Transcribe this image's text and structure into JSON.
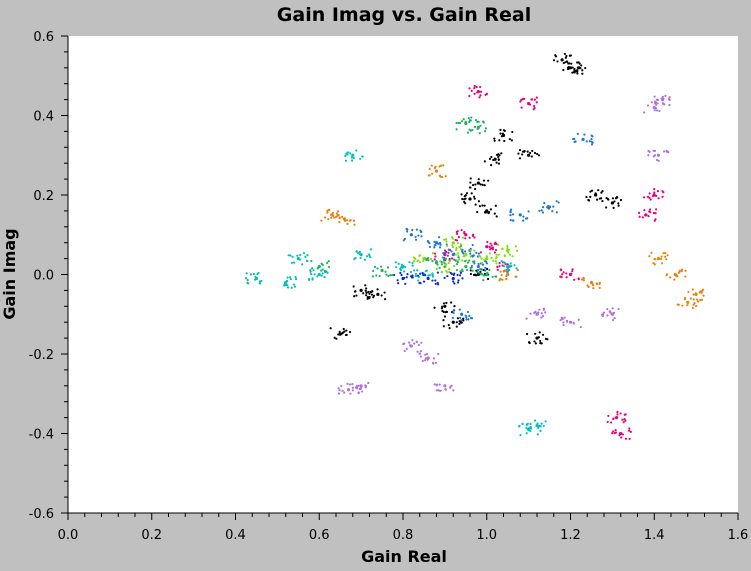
{
  "chart_data": {
    "type": "scatter",
    "title": "Gain Imag vs. Gain Real",
    "xlabel": "Gain Real",
    "ylabel": "Gain Imag",
    "xlim": [
      0.0,
      1.6
    ],
    "ylim": [
      -0.6,
      0.6
    ],
    "xticks": [
      "0.0",
      "0.2",
      "0.4",
      "0.6",
      "0.8",
      "1.0",
      "1.2",
      "1.4",
      "1.6"
    ],
    "yticks": [
      "0.6",
      "0.4",
      "0.2",
      "0.0",
      "-0.2",
      "-0.4",
      "-0.6"
    ],
    "grid": false,
    "legend": "none",
    "colors": [
      "#000000",
      "#e6007e",
      "#00bfbf",
      "#1e78d2",
      "#e8820c",
      "#7fe000",
      "#b070e0",
      "#20b060",
      "#0a2ad0"
    ],
    "series": [
      {
        "color": "#000000",
        "points": [
          [
            1.18,
            0.54
          ],
          [
            1.2,
            0.52
          ],
          [
            1.22,
            0.52
          ],
          [
            1.1,
            0.3
          ],
          [
            1.02,
            0.29
          ],
          [
            0.98,
            0.23
          ],
          [
            0.96,
            0.19
          ],
          [
            1.0,
            0.16
          ],
          [
            1.3,
            0.18
          ],
          [
            1.26,
            0.2
          ],
          [
            0.65,
            -0.15
          ],
          [
            0.92,
            -0.12
          ],
          [
            1.12,
            -0.16
          ],
          [
            0.74,
            -0.05
          ],
          [
            1.04,
            0.35
          ],
          [
            0.98,
            0.0
          ],
          [
            0.7,
            -0.04
          ],
          [
            0.9,
            -0.08
          ]
        ]
      },
      {
        "color": "#e6007e",
        "points": [
          [
            0.98,
            0.46
          ],
          [
            1.1,
            0.43
          ],
          [
            1.4,
            0.2
          ],
          [
            1.38,
            0.15
          ],
          [
            1.32,
            -0.4
          ],
          [
            1.31,
            -0.36
          ],
          [
            1.0,
            0.07
          ],
          [
            1.05,
            0.02
          ],
          [
            1.2,
            0.0
          ],
          [
            0.9,
            0.05
          ],
          [
            0.95,
            0.1
          ]
        ]
      },
      {
        "color": "#00bfbf",
        "points": [
          [
            0.68,
            0.3
          ],
          [
            0.55,
            0.04
          ],
          [
            0.6,
            0.0
          ],
          [
            0.52,
            -0.02
          ],
          [
            1.1,
            -0.39
          ],
          [
            1.12,
            -0.38
          ],
          [
            1.05,
            0.02
          ],
          [
            0.85,
            0.0
          ],
          [
            0.45,
            -0.01
          ],
          [
            0.7,
            0.05
          ],
          [
            0.8,
            0.02
          ]
        ]
      },
      {
        "color": "#1e78d2",
        "points": [
          [
            1.23,
            0.34
          ],
          [
            0.92,
            0.05
          ],
          [
            0.96,
            0.06
          ],
          [
            0.98,
            0.02
          ],
          [
            1.08,
            0.15
          ],
          [
            1.15,
            0.17
          ],
          [
            0.82,
            0.1
          ],
          [
            0.88,
            0.08
          ],
          [
            0.94,
            -0.1
          ]
        ]
      },
      {
        "color": "#e8820c",
        "points": [
          [
            1.5,
            -0.05
          ],
          [
            1.48,
            -0.07
          ],
          [
            1.45,
            0.0
          ],
          [
            0.63,
            0.15
          ],
          [
            0.66,
            0.14
          ],
          [
            1.05,
            0.0
          ],
          [
            1.25,
            -0.02
          ],
          [
            0.88,
            0.26
          ],
          [
            1.41,
            0.04
          ]
        ]
      },
      {
        "color": "#7fe000",
        "points": [
          [
            0.92,
            0.08
          ],
          [
            0.95,
            0.05
          ],
          [
            1.0,
            0.04
          ],
          [
            0.9,
            0.02
          ],
          [
            1.05,
            0.06
          ],
          [
            0.85,
            0.04
          ]
        ]
      },
      {
        "color": "#b070e0",
        "points": [
          [
            1.4,
            0.42
          ],
          [
            1.42,
            0.44
          ],
          [
            1.41,
            0.3
          ],
          [
            0.7,
            -0.28
          ],
          [
            0.67,
            -0.29
          ],
          [
            1.2,
            -0.12
          ],
          [
            1.12,
            -0.1
          ],
          [
            0.9,
            -0.28
          ],
          [
            0.86,
            -0.21
          ],
          [
            0.82,
            -0.18
          ],
          [
            1.3,
            -0.1
          ]
        ]
      },
      {
        "color": "#20b060",
        "points": [
          [
            0.95,
            0.38
          ],
          [
            0.98,
            0.37
          ],
          [
            0.95,
            0.02
          ],
          [
            0.88,
            0.03
          ],
          [
            1.0,
            0.0
          ],
          [
            0.75,
            0.01
          ],
          [
            0.6,
            0.02
          ]
        ]
      },
      {
        "color": "#0a2ad0",
        "points": [
          [
            0.8,
            -0.01
          ],
          [
            0.86,
            -0.01
          ],
          [
            0.92,
            -0.01
          ]
        ]
      }
    ]
  }
}
